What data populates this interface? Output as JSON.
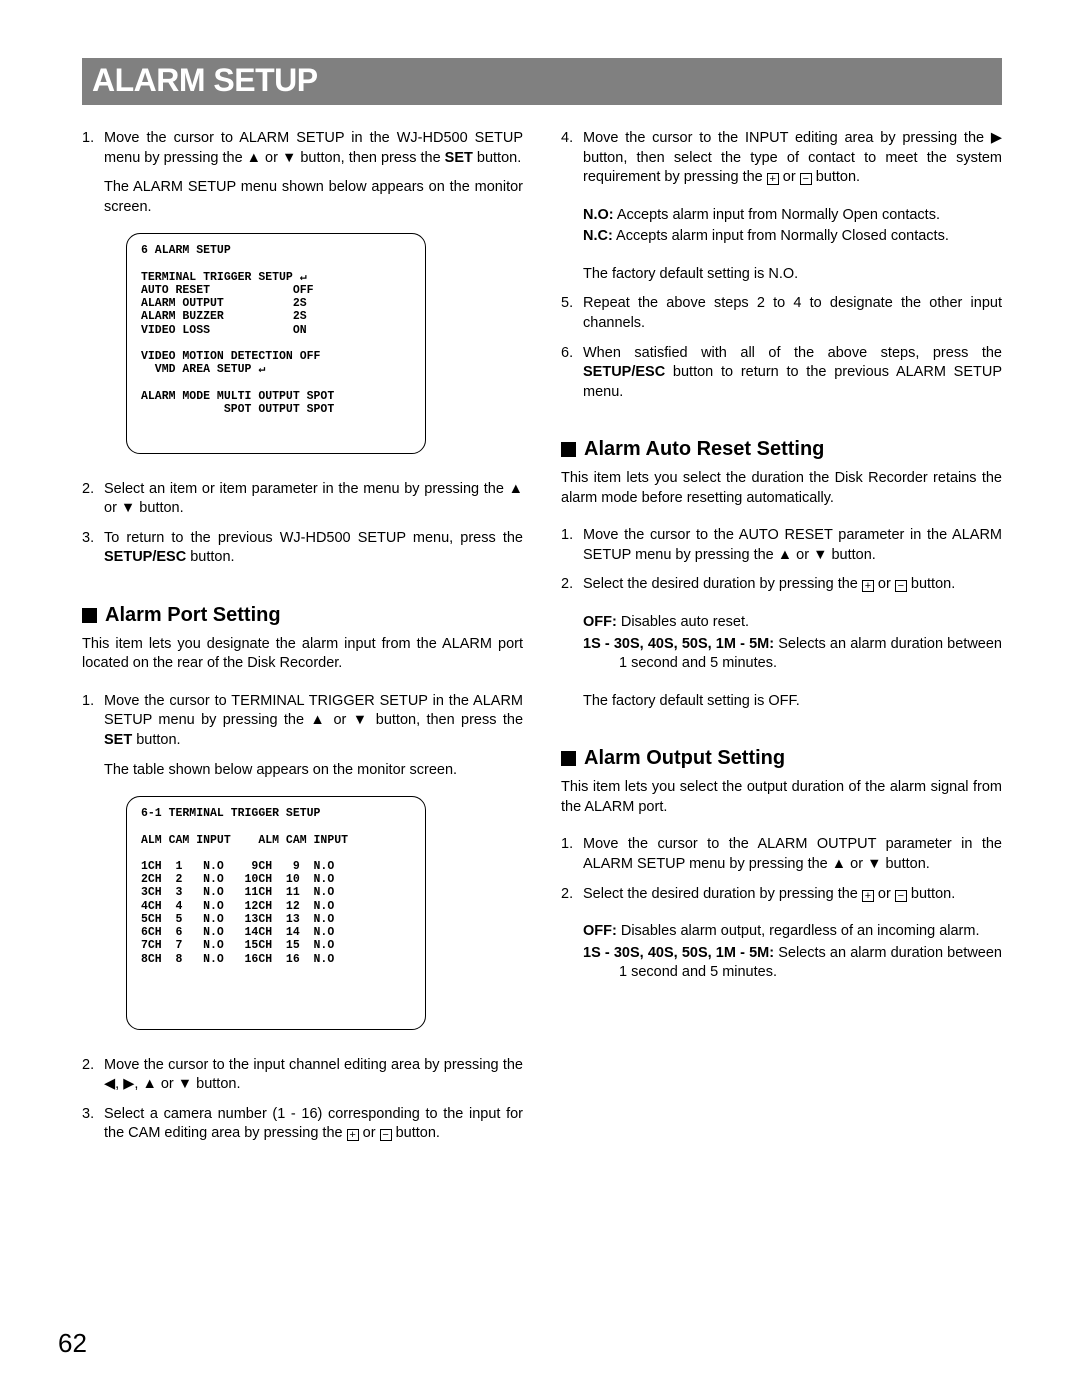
{
  "title": "ALARM SETUP",
  "pageNumber": "62",
  "glyphs": {
    "up": "▲",
    "down": "▼",
    "left": "◀",
    "right": "▶",
    "plus": "+",
    "minus": "−",
    "arrowHook": "↵"
  },
  "buttons": {
    "set": "SET",
    "setupEsc": "SETUP/ESC"
  },
  "left": {
    "step1a": "Move the cursor to ALARM SETUP in the WJ-HD500 SETUP menu by pressing the ",
    "step1b": " or ",
    "step1c": " button, then press the ",
    "step1d": " button.",
    "step1e": "The ALARM SETUP menu shown below appears on the monitor screen.",
    "screen1": "6 ALARM SETUP\n\nTERMINAL TRIGGER SETUP ↵\nAUTO RESET            OFF\nALARM OUTPUT          2S\nALARM BUZZER          2S\nVIDEO LOSS            ON\n\nVIDEO MOTION DETECTION OFF\n  VMD AREA SETUP ↵\n\nALARM MODE MULTI OUTPUT SPOT\n            SPOT OUTPUT SPOT\n\n\n",
    "step2a": "Select an item or item parameter in the menu by pressing the ",
    "step2b": " or ",
    "step2c": " button.",
    "step3a": "To return to the previous WJ-HD500 SETUP menu, press the ",
    "step3b": " button.",
    "portHeading": "Alarm Port Setting",
    "portIntro": "This item lets you designate the alarm input from the ALARM port located on the rear of the Disk Recorder.",
    "port1a": "Move the cursor to TERMINAL TRIGGER SETUP in the ALARM SETUP menu by pressing the ",
    "port1b": " or ",
    "port1c": " button, then press the ",
    "port1d": " button.",
    "port1e": "The table shown below appears on the monitor screen.",
    "screen2": "6-1 TERMINAL TRIGGER SETUP\n\nALM CAM INPUT    ALM CAM INPUT\n\n1CH  1   N.O    9CH   9  N.O\n2CH  2   N.O   10CH  10  N.O\n3CH  3   N.O   11CH  11  N.O\n4CH  4   N.O   12CH  12  N.O\n5CH  5   N.O   13CH  13  N.O\n6CH  6   N.O   14CH  14  N.O\n7CH  7   N.O   15CH  15  N.O\n8CH  8   N.O   16CH  16  N.O\n\n\n\n\n",
    "port2a": "Move the cursor to the input channel editing area by pressing the ",
    "port2b": ", ",
    "port2c": ", ",
    "port2d": " or ",
    "port2e": " button.",
    "port3a": "Select a camera number (1 - 16) corresponding to the input for the CAM editing area by pressing the ",
    "port3b": " or ",
    "port3c": " button."
  },
  "right": {
    "step4a": "Move the cursor to the INPUT editing area by pressing the ",
    "step4b": " button, then select the type of contact to meet the system requirement by pressing the ",
    "step4c": " or ",
    "step4d": " button.",
    "noLabel": "N.O:",
    "noText": " Accepts alarm input from Normally Open contacts.",
    "ncLabel": "N.C:",
    "ncText": " Accepts alarm input from Normally Closed contacts.",
    "factoryNO": "The factory default setting is N.O.",
    "step5": "Repeat the above steps 2 to 4 to designate the other input channels.",
    "step6a": "When satisfied with all of the above steps, press the ",
    "step6b": " button to return to the previous ALARM SETUP menu.",
    "autoHeading": "Alarm Auto Reset Setting",
    "autoIntro": "This item lets you select the duration the Disk Recorder retains the alarm mode before resetting automatically.",
    "auto1a": "Move the cursor to the AUTO RESET parameter in the ALARM SETUP menu by pressing the ",
    "auto1b": " or ",
    "auto1c": " button.",
    "auto2a": "Select the desired duration by pressing the ",
    "auto2b": " or ",
    "auto2c": " button.",
    "offLabel": "OFF:",
    "offText": " Disables auto reset.",
    "rangeLabel": "1S - 30S, 40S, 50S, 1M - 5M:",
    "rangeText": " Selects an alarm duration between 1 second and 5 minutes.",
    "factoryOFF": "The factory default setting is OFF.",
    "outHeading": "Alarm Output Setting",
    "outIntro": "This item lets you select the output duration of the alarm signal from the ALARM port.",
    "out1a": "Move the cursor to the ALARM OUTPUT parameter in the ALARM SETUP menu by pressing the ",
    "out1b": " or ",
    "out1c": " button.",
    "out2a": "Select the desired duration by pressing the ",
    "out2b": " or ",
    "out2c": " button.",
    "outOffLabel": "OFF:",
    "outOffText": " Disables alarm output, regardless of an incoming alarm.",
    "outRangeLabel": "1S - 30S, 40S, 50S, 1M - 5M:",
    "outRangeText": " Selects an alarm duration between 1 second and 5 minutes."
  }
}
